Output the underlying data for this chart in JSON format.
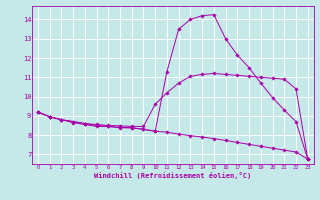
{
  "xlabel": "Windchill (Refroidissement éolien,°C)",
  "xlim": [
    -0.5,
    23.5
  ],
  "ylim": [
    6.5,
    14.7
  ],
  "yticks": [
    7,
    8,
    9,
    10,
    11,
    12,
    13,
    14
  ],
  "xticks": [
    0,
    1,
    2,
    3,
    4,
    5,
    6,
    7,
    8,
    9,
    10,
    11,
    12,
    13,
    14,
    15,
    16,
    17,
    18,
    19,
    20,
    21,
    22,
    23
  ],
  "bg_color": "#c5e8e8",
  "line_color": "#aa00aa",
  "grid_color": "#ffffff",
  "curve1_x": [
    0,
    1,
    2,
    3,
    4,
    5,
    6,
    7,
    8,
    9,
    10,
    11,
    12,
    13,
    14,
    15,
    16,
    17,
    18,
    19,
    20,
    21,
    22,
    23
  ],
  "curve1_y": [
    9.2,
    8.95,
    8.8,
    8.65,
    8.55,
    8.45,
    8.45,
    8.38,
    8.38,
    8.3,
    8.2,
    11.3,
    13.5,
    14.0,
    14.2,
    14.25,
    13.0,
    12.15,
    11.5,
    10.7,
    9.95,
    9.3,
    8.7,
    6.75
  ],
  "curve2_x": [
    0,
    1,
    2,
    3,
    4,
    5,
    6,
    7,
    8,
    9,
    10,
    11,
    12,
    13,
    14,
    15,
    16,
    17,
    18,
    19,
    20,
    21,
    22,
    23
  ],
  "curve2_y": [
    9.2,
    8.95,
    8.8,
    8.7,
    8.6,
    8.55,
    8.5,
    8.48,
    8.45,
    8.45,
    9.6,
    10.2,
    10.7,
    11.05,
    11.15,
    11.2,
    11.15,
    11.1,
    11.05,
    11.0,
    10.95,
    10.9,
    10.4,
    6.75
  ],
  "curve3_x": [
    0,
    1,
    2,
    3,
    4,
    5,
    6,
    7,
    8,
    9,
    10,
    11,
    12,
    13,
    14,
    15,
    16,
    17,
    18,
    19,
    20,
    21,
    22,
    23
  ],
  "curve3_y": [
    9.2,
    8.95,
    8.8,
    8.7,
    8.6,
    8.5,
    8.45,
    8.4,
    8.38,
    8.3,
    8.2,
    8.15,
    8.05,
    7.97,
    7.9,
    7.82,
    7.72,
    7.62,
    7.52,
    7.42,
    7.32,
    7.22,
    7.12,
    6.75
  ]
}
